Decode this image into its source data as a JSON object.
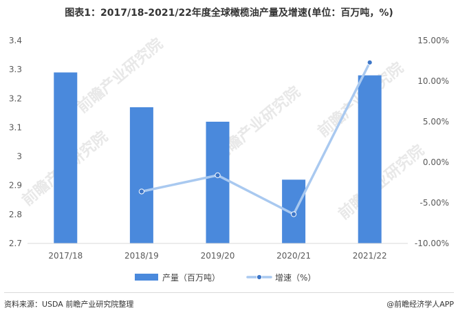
{
  "title": "图表1：2017/18-2021/22年度全球橄榄油产量及增速(单位：百万吨，%)",
  "source": "资料来源：USDA 前瞻产业研究院整理",
  "credit": "@前瞻经济学人APP",
  "watermark": "前瞻产业研究院",
  "colors": {
    "bar": "#4a89dc",
    "line": "#a9c9f0",
    "marker": "#3d76c8"
  },
  "chart_data": {
    "type": "bar",
    "title": "图表1：2017/18-2021/22年度全球橄榄油产量及增速(单位：百万吨，%)",
    "categories": [
      "2017/18",
      "2018/19",
      "2019/20",
      "2020/21",
      "2021/22"
    ],
    "series": [
      {
        "name": "产量（百万吨）",
        "type": "bar",
        "axis": "left",
        "values": [
          3.29,
          3.17,
          3.12,
          2.92,
          3.28
        ]
      },
      {
        "name": "增速（%）",
        "type": "line",
        "axis": "right",
        "values": [
          null,
          -3.6,
          -1.6,
          -6.4,
          12.3
        ]
      }
    ],
    "y_left": {
      "lim": [
        2.7,
        3.4
      ],
      "ticks": [
        2.7,
        2.8,
        2.9,
        3.0,
        3.1,
        3.2,
        3.3,
        3.4
      ],
      "tick_labels": [
        "2.7",
        "2.8",
        "2.9",
        "3",
        "3.1",
        "3.2",
        "3.3",
        "3.4"
      ]
    },
    "y_right": {
      "lim": [
        -10,
        15
      ],
      "ticks": [
        -10,
        -5,
        0,
        5,
        10,
        15
      ],
      "tick_labels": [
        "-10.00%",
        "-5.00%",
        "0.00%",
        "5.00%",
        "10.00%",
        "15.00%"
      ]
    },
    "legend": {
      "position": "bottom",
      "items": [
        "产量（百万吨）",
        "增速（%）"
      ]
    },
    "grid": false
  }
}
